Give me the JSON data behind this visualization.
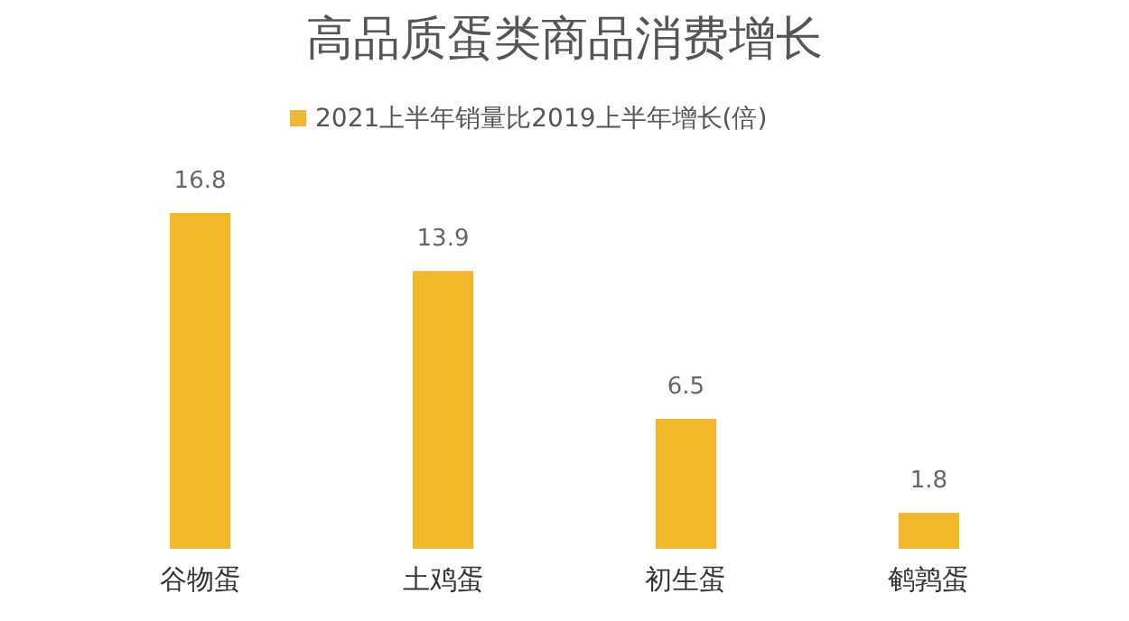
{
  "chart_data": {
    "type": "bar",
    "title": "高品质蛋类商品消费增长",
    "categories": [
      "谷物蛋",
      "土鸡蛋",
      "初生蛋",
      "鹌鹑蛋"
    ],
    "series": [
      {
        "name": "2021上半年销量比2019上半年增长(倍)",
        "color": "#f0b82a",
        "values": [
          16.8,
          13.9,
          6.5,
          1.8
        ]
      }
    ],
    "data_labels": true,
    "legend": "top"
  }
}
